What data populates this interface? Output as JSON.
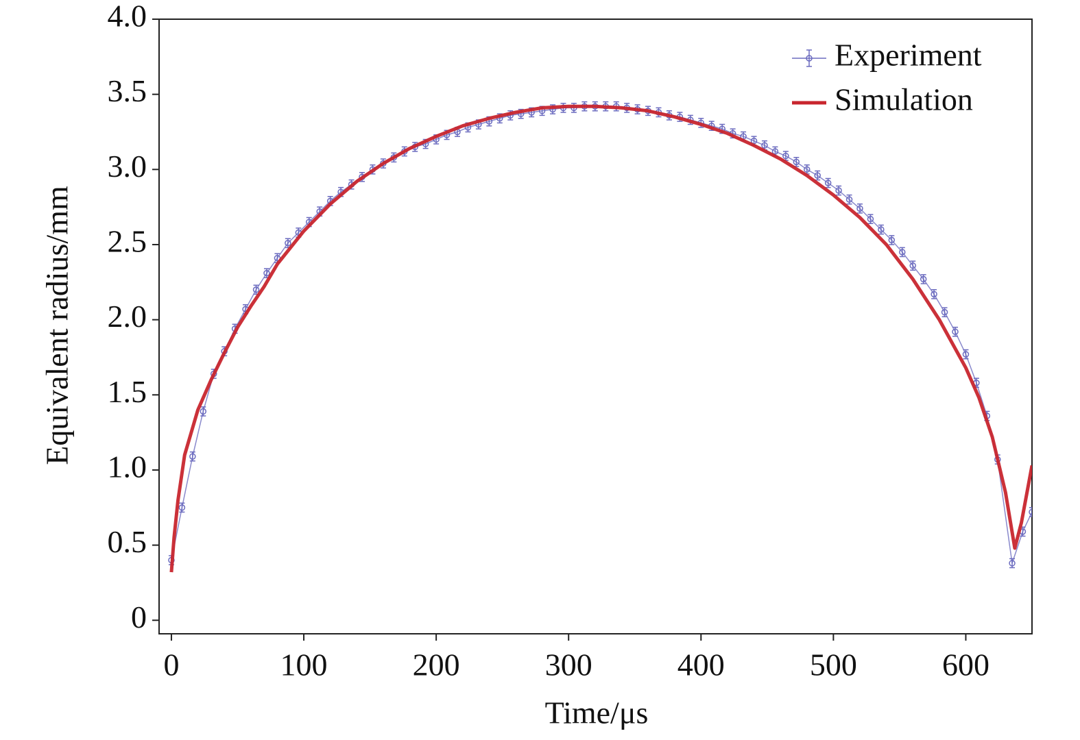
{
  "chart_data": {
    "type": "line",
    "xlabel": "Time/μs",
    "ylabel": "Equivalent radius/mm",
    "xlim": [
      -9.3,
      650
    ],
    "ylim": [
      -0.09,
      4.0
    ],
    "xticks": [
      0,
      100,
      200,
      300,
      400,
      500,
      600
    ],
    "yticks": [
      0,
      0.5,
      {
        "value": 1,
        "label": "1.0"
      },
      1.5,
      {
        "value": 2,
        "label": "2.0"
      },
      2.5,
      {
        "value": 3,
        "label": "3.0"
      },
      3.5,
      {
        "value": 4,
        "label": "4.0"
      }
    ],
    "legend": "upper right",
    "series": [
      {
        "name": "Experiment",
        "color": "#6b6bbf",
        "marker": "circle",
        "error": 0.03,
        "x": [
          0,
          8,
          16,
          24,
          32,
          40,
          48,
          56,
          64,
          72,
          80,
          88,
          96,
          104,
          112,
          120,
          128,
          136,
          144,
          152,
          160,
          168,
          176,
          184,
          192,
          200,
          208,
          216,
          224,
          232,
          240,
          248,
          256,
          264,
          272,
          280,
          288,
          296,
          304,
          312,
          320,
          328,
          336,
          344,
          352,
          360,
          368,
          376,
          384,
          392,
          400,
          408,
          416,
          424,
          432,
          440,
          448,
          456,
          464,
          472,
          480,
          488,
          496,
          504,
          512,
          520,
          528,
          536,
          544,
          552,
          560,
          568,
          576,
          584,
          592,
          600,
          608,
          616,
          624,
          635,
          643,
          650
        ],
        "values": [
          0.4,
          0.75,
          1.09,
          1.39,
          1.64,
          1.79,
          1.94,
          2.07,
          2.2,
          2.31,
          2.41,
          2.51,
          2.58,
          2.65,
          2.72,
          2.79,
          2.85,
          2.9,
          2.95,
          3.0,
          3.04,
          3.08,
          3.12,
          3.15,
          3.17,
          3.2,
          3.23,
          3.25,
          3.28,
          3.3,
          3.32,
          3.34,
          3.36,
          3.37,
          3.38,
          3.39,
          3.4,
          3.41,
          3.41,
          3.42,
          3.42,
          3.42,
          3.42,
          3.41,
          3.4,
          3.39,
          3.38,
          3.36,
          3.35,
          3.33,
          3.31,
          3.29,
          3.27,
          3.24,
          3.22,
          3.19,
          3.16,
          3.12,
          3.09,
          3.05,
          3.0,
          2.96,
          2.91,
          2.86,
          2.8,
          2.74,
          2.67,
          2.6,
          2.53,
          2.45,
          2.36,
          2.27,
          2.17,
          2.05,
          1.92,
          1.77,
          1.58,
          1.36,
          1.07,
          0.38,
          0.59,
          0.72
        ]
      },
      {
        "name": "Simulation",
        "color": "#c8262e",
        "x": [
          0,
          2,
          5,
          10,
          20,
          30,
          40,
          50,
          60,
          70,
          80,
          90,
          100,
          120,
          140,
          160,
          180,
          200,
          220,
          240,
          260,
          280,
          300,
          320,
          340,
          360,
          380,
          400,
          420,
          440,
          460,
          480,
          500,
          520,
          540,
          560,
          580,
          600,
          610,
          620,
          630,
          637,
          642,
          650
        ],
        "values": [
          0.32,
          0.55,
          0.8,
          1.1,
          1.4,
          1.6,
          1.78,
          1.95,
          2.09,
          2.22,
          2.37,
          2.48,
          2.59,
          2.77,
          2.92,
          3.04,
          3.14,
          3.22,
          3.29,
          3.34,
          3.38,
          3.41,
          3.42,
          3.42,
          3.41,
          3.39,
          3.35,
          3.3,
          3.24,
          3.16,
          3.07,
          2.96,
          2.83,
          2.68,
          2.5,
          2.27,
          2.0,
          1.68,
          1.48,
          1.22,
          0.85,
          0.48,
          0.65,
          1.03
        ]
      }
    ]
  }
}
